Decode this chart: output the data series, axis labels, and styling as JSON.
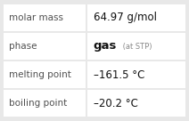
{
  "rows": [
    {
      "label": "molar mass",
      "value": "64.97 g/mol",
      "type": "simple"
    },
    {
      "label": "phase",
      "value_main": "gas",
      "value_sub": " (at STP)",
      "type": "phase"
    },
    {
      "label": "melting point",
      "value": "–161.5 °C",
      "type": "simple"
    },
    {
      "label": "boiling point",
      "value": "–20.2 °C",
      "type": "simple"
    }
  ],
  "background_color": "#e8e8e8",
  "cell_bg": "#ffffff",
  "border_color": "#c8c8c8",
  "label_color": "#505050",
  "value_color": "#111111",
  "sub_color": "#888888",
  "col_split": 0.455,
  "label_fontsize": 7.5,
  "value_fontsize": 8.5,
  "sub_fontsize": 6.0,
  "gas_fontsize": 9.5
}
